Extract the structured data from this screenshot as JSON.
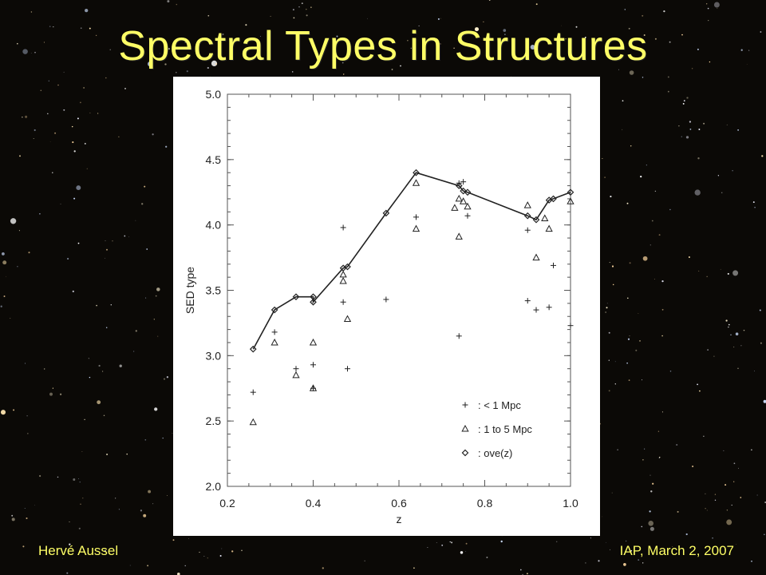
{
  "slide": {
    "title": "Spectral Types in Structures",
    "footer_left": "Hervé Aussel",
    "footer_right": "IAP, March 2, 2007",
    "title_color": "#ffff66"
  },
  "chart_data": {
    "type": "scatter",
    "xlabel": "z",
    "ylabel": "SED type",
    "xlim": [
      0.2,
      1.0
    ],
    "ylim": [
      2.0,
      5.0
    ],
    "xticks": [
      "0.2",
      "0.4",
      "0.6",
      "0.8",
      "1.0"
    ],
    "yticks": [
      "2.0",
      "2.5",
      "3.0",
      "3.5",
      "4.0",
      "4.5",
      "5.0"
    ],
    "legend_position": "bottom-right",
    "series": [
      {
        "name": ": < 1  Mpc",
        "marker": "plus",
        "points": [
          [
            0.26,
            2.72
          ],
          [
            0.31,
            3.18
          ],
          [
            0.36,
            2.9
          ],
          [
            0.4,
            2.93
          ],
          [
            0.4,
            2.75
          ],
          [
            0.47,
            3.98
          ],
          [
            0.47,
            3.41
          ],
          [
            0.48,
            2.9
          ],
          [
            0.57,
            3.43
          ],
          [
            0.64,
            4.06
          ],
          [
            0.74,
            4.32
          ],
          [
            0.74,
            3.15
          ],
          [
            0.75,
            4.33
          ],
          [
            0.76,
            4.07
          ],
          [
            0.9,
            3.96
          ],
          [
            0.9,
            3.42
          ],
          [
            0.92,
            3.35
          ],
          [
            0.95,
            3.37
          ],
          [
            0.96,
            3.69
          ],
          [
            1.0,
            3.23
          ]
        ]
      },
      {
        "name": ": 1  to  5  Mpc",
        "marker": "triangle",
        "points": [
          [
            0.26,
            2.49
          ],
          [
            0.31,
            3.1
          ],
          [
            0.36,
            2.85
          ],
          [
            0.4,
            3.1
          ],
          [
            0.4,
            2.75
          ],
          [
            0.47,
            3.62
          ],
          [
            0.47,
            3.57
          ],
          [
            0.48,
            3.28
          ],
          [
            0.64,
            4.32
          ],
          [
            0.64,
            3.97
          ],
          [
            0.73,
            4.13
          ],
          [
            0.74,
            4.2
          ],
          [
            0.74,
            3.91
          ],
          [
            0.75,
            4.18
          ],
          [
            0.76,
            4.14
          ],
          [
            0.9,
            4.15
          ],
          [
            0.92,
            3.75
          ],
          [
            0.94,
            4.05
          ],
          [
            0.95,
            3.97
          ],
          [
            1.0,
            4.18
          ]
        ]
      },
      {
        "name": ": ove(z)",
        "marker": "diamond",
        "line": true,
        "points": [
          [
            0.26,
            3.05
          ],
          [
            0.31,
            3.35
          ],
          [
            0.36,
            3.45
          ],
          [
            0.4,
            3.45
          ],
          [
            0.4,
            3.41
          ],
          [
            0.47,
            3.67
          ],
          [
            0.48,
            3.68
          ],
          [
            0.57,
            4.09
          ],
          [
            0.64,
            4.4
          ],
          [
            0.74,
            4.3
          ],
          [
            0.75,
            4.26
          ],
          [
            0.76,
            4.25
          ],
          [
            0.9,
            4.07
          ],
          [
            0.92,
            4.04
          ],
          [
            0.95,
            4.19
          ],
          [
            0.96,
            4.2
          ],
          [
            1.0,
            4.25
          ]
        ]
      }
    ]
  }
}
